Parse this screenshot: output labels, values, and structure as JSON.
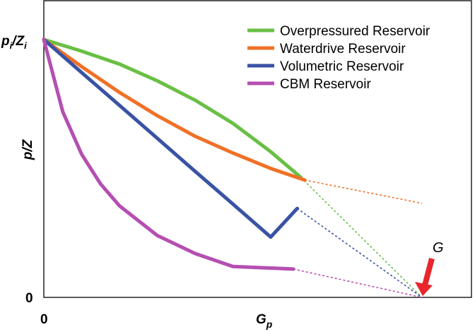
{
  "chart_data": {
    "type": "line",
    "title": "",
    "xlabel": "G",
    "xlabel_sub": "p",
    "ylabel": "p/Z",
    "y_tick_top_main": "p",
    "y_tick_top_sub1": "i",
    "y_tick_top_sep": "/Z",
    "y_tick_top_sub2": "i",
    "y_tick_zero": "0",
    "x_tick_zero": "0",
    "annotation": "G",
    "xlim": [
      0,
      1.1
    ],
    "ylim": [
      0,
      1
    ],
    "grid": false,
    "legend_position": "top-right",
    "series": [
      {
        "name": "Overpressured Reservoir",
        "color": "#6abf45",
        "solid": [
          [
            0,
            1.0
          ],
          [
            0.1,
            0.955
          ],
          [
            0.2,
            0.905
          ],
          [
            0.3,
            0.84
          ],
          [
            0.4,
            0.765
          ],
          [
            0.5,
            0.675
          ],
          [
            0.6,
            0.565
          ],
          [
            0.68,
            0.465
          ]
        ],
        "extrapolated": [
          [
            0.68,
            0.465
          ],
          [
            1.0,
            0.0
          ]
        ]
      },
      {
        "name": "Waterdrive Reservoir",
        "color": "#f07126",
        "solid": [
          [
            0,
            1.0
          ],
          [
            0.1,
            0.895
          ],
          [
            0.2,
            0.795
          ],
          [
            0.3,
            0.705
          ],
          [
            0.4,
            0.625
          ],
          [
            0.5,
            0.56
          ],
          [
            0.6,
            0.5
          ],
          [
            0.69,
            0.455
          ]
        ],
        "extrapolated": [
          [
            0.69,
            0.455
          ],
          [
            1.0,
            0.365
          ]
        ]
      },
      {
        "name": "Volumetric Reservoir",
        "color": "#3953a4",
        "solid": [
          [
            0,
            1.0
          ],
          [
            0.1,
            0.872
          ],
          [
            0.2,
            0.745
          ],
          [
            0.3,
            0.617
          ],
          [
            0.4,
            0.489
          ],
          [
            0.5,
            0.362
          ],
          [
            0.6,
            0.234
          ],
          [
            0.67,
            0.345
          ]
        ],
        "extrapolated": [
          [
            0.67,
            0.345
          ],
          [
            1.0,
            0.0
          ]
        ]
      },
      {
        "name": "CBM Reservoir",
        "color": "#b54fb1",
        "solid": [
          [
            0,
            1.0
          ],
          [
            0.05,
            0.72
          ],
          [
            0.1,
            0.555
          ],
          [
            0.15,
            0.44
          ],
          [
            0.2,
            0.355
          ],
          [
            0.3,
            0.24
          ],
          [
            0.4,
            0.17
          ],
          [
            0.5,
            0.12
          ],
          [
            0.66,
            0.11
          ]
        ],
        "extrapolated": [
          [
            0.66,
            0.11
          ],
          [
            1.0,
            0.0
          ]
        ]
      }
    ]
  }
}
